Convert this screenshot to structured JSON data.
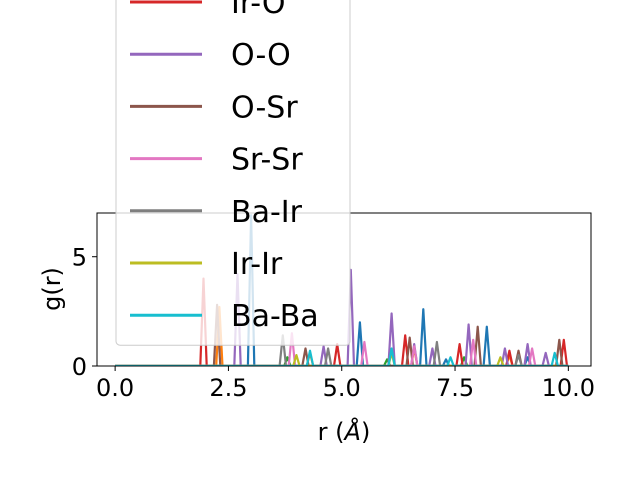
{
  "chart_data": {
    "type": "line",
    "xlabel": "r (",
    "xlabel_unit": "Å",
    "xlabel_close": ")",
    "ylabel": "g(r)",
    "xlim": [
      -0.4,
      10.5
    ],
    "ylim": [
      0,
      7.0
    ],
    "xticks": [
      0.0,
      2.5,
      5.0,
      7.5,
      10.0
    ],
    "xtick_labels": [
      "0.0",
      "2.5",
      "5.0",
      "7.5",
      "10.0"
    ],
    "yticks": [
      0,
      5
    ],
    "ytick_labels": [
      "0",
      "5"
    ],
    "grid": false,
    "legend_position": "upper-left",
    "series": [
      {
        "name": "",
        "color": "#1f77b4",
        "peaks": [
          [
            3.0,
            6.9
          ],
          [
            5.4,
            2.0
          ],
          [
            6.8,
            2.6
          ],
          [
            7.3,
            0.3
          ],
          [
            8.2,
            1.8
          ],
          [
            9.1,
            0.4
          ]
        ]
      },
      {
        "name": "",
        "color": "#ff7f0e",
        "peaks": [
          [
            2.3,
            2.7
          ],
          [
            4.3,
            0.6
          ],
          [
            6.6,
            0.8
          ],
          [
            8.7,
            0.5
          ]
        ]
      },
      {
        "name": "",
        "color": "#2ca02c",
        "peaks": [
          [
            3.8,
            0.4
          ],
          [
            6.0,
            0.3
          ],
          [
            7.7,
            0.4
          ]
        ]
      },
      {
        "name": "Ir-O",
        "color": "#d62728",
        "peaks": [
          [
            1.95,
            4.0
          ],
          [
            4.9,
            1.0
          ],
          [
            6.4,
            1.4
          ],
          [
            7.6,
            1.0
          ],
          [
            8.7,
            0.7
          ],
          [
            9.9,
            1.2
          ]
        ]
      },
      {
        "name": "O-O",
        "color": "#9467bd",
        "peaks": [
          [
            2.7,
            4.2
          ],
          [
            4.6,
            0.9
          ],
          [
            5.2,
            4.4
          ],
          [
            6.1,
            2.4
          ],
          [
            6.6,
            1.0
          ],
          [
            7.0,
            0.8
          ],
          [
            7.8,
            1.9
          ],
          [
            8.6,
            0.8
          ],
          [
            9.1,
            1.0
          ],
          [
            9.5,
            0.6
          ]
        ]
      },
      {
        "name": "O-Sr",
        "color": "#8c564b",
        "peaks": [
          [
            2.25,
            2.8
          ],
          [
            4.2,
            0.8
          ],
          [
            6.5,
            1.3
          ],
          [
            8.0,
            1.8
          ],
          [
            8.9,
            0.7
          ],
          [
            9.8,
            1.2
          ]
        ]
      },
      {
        "name": "Sr-Sr",
        "color": "#e377c2",
        "peaks": [
          [
            3.9,
            1.5
          ],
          [
            5.5,
            1.1
          ],
          [
            6.6,
            0.9
          ],
          [
            7.9,
            1.2
          ],
          [
            9.2,
            0.8
          ]
        ]
      },
      {
        "name": "Ba-Ir",
        "color": "#7f7f7f",
        "peaks": [
          [
            3.7,
            1.4
          ],
          [
            4.7,
            0.8
          ],
          [
            7.1,
            1.1
          ],
          [
            8.9,
            0.5
          ]
        ]
      },
      {
        "name": "Ir-Ir",
        "color": "#bcbd22",
        "peaks": [
          [
            4.0,
            0.5
          ],
          [
            6.1,
            0.6
          ],
          [
            8.5,
            0.4
          ]
        ]
      },
      {
        "name": "Ba-Ba",
        "color": "#17becf",
        "peaks": [
          [
            4.3,
            0.7
          ],
          [
            6.1,
            0.8
          ],
          [
            7.4,
            0.4
          ],
          [
            9.7,
            0.6
          ]
        ]
      }
    ]
  }
}
